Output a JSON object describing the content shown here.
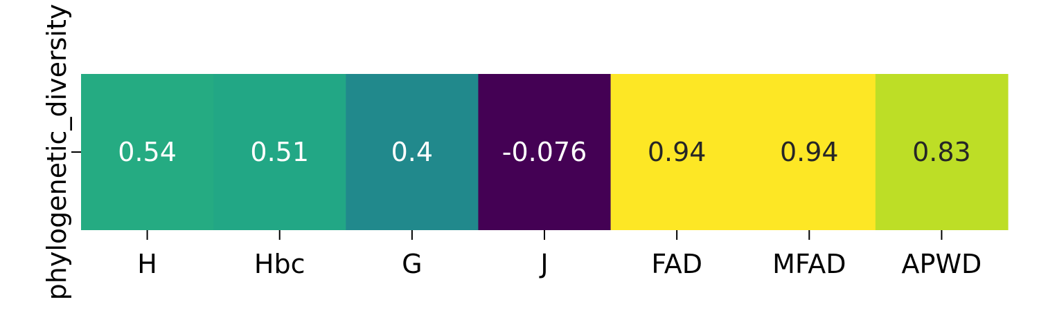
{
  "chart_data": {
    "type": "heatmap",
    "title": "",
    "xlabel": "",
    "ylabel": "phylogenetic_diversity",
    "row_tick_label": "",
    "categories": [
      "H",
      "Hbc",
      "G",
      "J",
      "FAD",
      "MFAD",
      "APWD"
    ],
    "values": [
      0.54,
      0.51,
      0.4,
      -0.076,
      0.94,
      0.94,
      0.83
    ],
    "value_labels": [
      "0.54",
      "0.51",
      "0.4",
      "-0.076",
      "0.94",
      "0.94",
      "0.83"
    ],
    "colormap": "viridis",
    "cell_colors": [
      "#25ab82",
      "#22a785",
      "#21898c",
      "#440154",
      "#fde725",
      "#fde725",
      "#bdde26"
    ],
    "label_colors": [
      "#ffffff",
      "#ffffff",
      "#ffffff",
      "#ffffff",
      "#262626",
      "#262626",
      "#262626"
    ],
    "legend": "none",
    "grid": false
  }
}
